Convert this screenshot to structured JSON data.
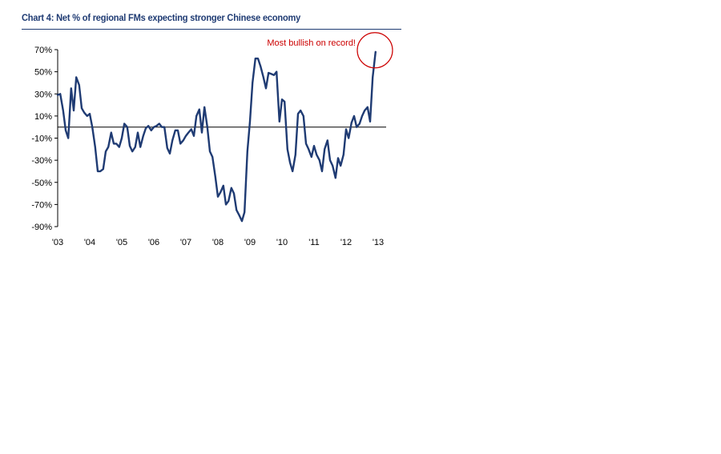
{
  "chart_data": {
    "type": "line",
    "title": "Chart 4: Net % of regional FMs expecting stronger Chinese economy",
    "xlabel": "",
    "ylabel": "",
    "xlim": [
      2003.0,
      2013.0
    ],
    "ylim": [
      -90,
      70
    ],
    "y_ticks": [
      70,
      50,
      30,
      10,
      -10,
      -30,
      -50,
      -70,
      -90
    ],
    "y_tick_labels": [
      "70%",
      "50%",
      "30%",
      "10%",
      "-10%",
      "-30%",
      "-50%",
      "-70%",
      "-90%"
    ],
    "x_ticks": [
      2003,
      2004,
      2005,
      2006,
      2007,
      2008,
      2009,
      2010,
      2011,
      2012,
      2013
    ],
    "x_tick_labels": [
      "'03",
      "'04",
      "'05",
      "'06",
      "'07",
      "'08",
      "'09",
      "'10",
      "'11",
      "'12",
      "'13"
    ],
    "zero_line": 0,
    "grid": false,
    "line_color": "#1f3b73",
    "annotation": {
      "text": "Most bullish on record!",
      "x": 2012.95,
      "y": 68,
      "color": "#cc0000"
    },
    "series": [
      {
        "name": "",
        "x": [
          2003.0,
          2003.08,
          2003.17,
          2003.25,
          2003.33,
          2003.42,
          2003.5,
          2003.58,
          2003.67,
          2003.75,
          2003.83,
          2003.92,
          2004.0,
          2004.08,
          2004.17,
          2004.25,
          2004.33,
          2004.42,
          2004.5,
          2004.58,
          2004.67,
          2004.75,
          2004.83,
          2004.92,
          2005.0,
          2005.08,
          2005.17,
          2005.25,
          2005.33,
          2005.42,
          2005.5,
          2005.58,
          2005.67,
          2005.75,
          2005.83,
          2005.92,
          2006.0,
          2006.08,
          2006.17,
          2006.25,
          2006.33,
          2006.42,
          2006.5,
          2006.58,
          2006.67,
          2006.75,
          2006.83,
          2006.92,
          2007.0,
          2007.08,
          2007.17,
          2007.25,
          2007.33,
          2007.42,
          2007.5,
          2007.58,
          2007.67,
          2007.75,
          2007.83,
          2007.92,
          2008.0,
          2008.08,
          2008.17,
          2008.25,
          2008.33,
          2008.42,
          2008.5,
          2008.58,
          2008.67,
          2008.75,
          2008.83,
          2008.92,
          2009.0,
          2009.08,
          2009.17,
          2009.25,
          2009.33,
          2009.42,
          2009.5,
          2009.58,
          2009.67,
          2009.75,
          2009.83,
          2009.92,
          2010.0,
          2010.08,
          2010.17,
          2010.25,
          2010.33,
          2010.42,
          2010.5,
          2010.58,
          2010.67,
          2010.75,
          2010.83,
          2010.92,
          2011.0,
          2011.08,
          2011.17,
          2011.25,
          2011.33,
          2011.42,
          2011.5,
          2011.58,
          2011.67,
          2011.75,
          2011.83,
          2011.92,
          2012.0,
          2012.08,
          2012.17,
          2012.25,
          2012.33,
          2012.42,
          2012.5,
          2012.58,
          2012.67,
          2012.75,
          2012.83,
          2012.92
        ],
        "values": [
          29,
          30,
          15,
          -3,
          -10,
          35,
          15,
          45,
          38,
          17,
          13,
          10,
          12,
          0,
          -18,
          -40,
          -40,
          -38,
          -22,
          -18,
          -5,
          -15,
          -15,
          -18,
          -10,
          3,
          0,
          -17,
          -22,
          -18,
          -5,
          -18,
          -8,
          -1,
          1,
          -3,
          0,
          1,
          3,
          0,
          0,
          -19,
          -24,
          -12,
          -3,
          -3,
          -15,
          -12,
          -8,
          -5,
          -2,
          -8,
          10,
          16,
          -5,
          18,
          0,
          -22,
          -27,
          -45,
          -63,
          -59,
          -53,
          -70,
          -67,
          -55,
          -60,
          -75,
          -80,
          -85,
          -77,
          -22,
          5,
          40,
          62,
          62,
          55,
          45,
          35,
          49,
          48,
          47,
          50,
          5,
          25,
          23,
          -20,
          -32,
          -40,
          -25,
          12,
          15,
          10,
          -15,
          -20,
          -27,
          -17,
          -25,
          -30,
          -40,
          -20,
          -12,
          -30,
          -35,
          -46,
          -28,
          -35,
          -25,
          -2,
          -10,
          4,
          10,
          0,
          3,
          10,
          15,
          18,
          5,
          45,
          68
        ]
      }
    ]
  }
}
